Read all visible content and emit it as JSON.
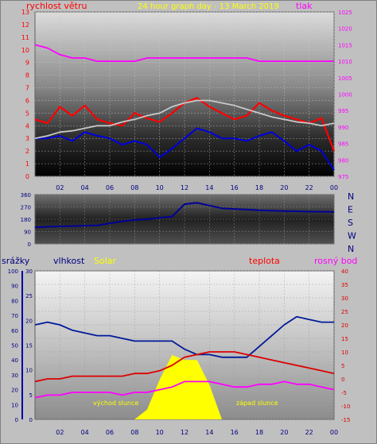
{
  "colors": {
    "background": "#c0c0c0",
    "wind": "#ff0000",
    "wind_avg": "#0000dd",
    "pressure": "#ff00ff",
    "direction": "#000099",
    "humidity": "#001a99",
    "solar": "#ffff00",
    "temperature": "#dd0000",
    "dewpoint": "#ff00ff",
    "temp_grey": "#c8c8c8"
  },
  "chart_data": [
    {
      "type": "line",
      "title": "24 hour graph day - 13 March 2019",
      "left_label": "rychlost větru",
      "right_label": "tlak",
      "x_ticks": [
        "02",
        "04",
        "06",
        "08",
        "10",
        "12",
        "14",
        "16",
        "18",
        "20",
        "22",
        "00"
      ],
      "y_left": {
        "min": 0,
        "max": 13,
        "ticks": [
          "0",
          "1",
          "2",
          "3",
          "4",
          "5",
          "6",
          "7",
          "8",
          "9",
          "10",
          "11",
          "12",
          "13"
        ]
      },
      "y_right": {
        "min": 975,
        "max": 1025,
        "ticks": [
          "975",
          "980",
          "985",
          "990",
          "995",
          "1000",
          "1005",
          "1010",
          "1015",
          "1020",
          "1025"
        ]
      },
      "x": [
        0,
        1,
        2,
        3,
        4,
        5,
        6,
        7,
        8,
        9,
        10,
        11,
        12,
        13,
        14,
        15,
        16,
        17,
        18,
        19,
        20,
        21,
        22,
        23,
        24
      ],
      "series": [
        {
          "name": "gust",
          "axis": "left",
          "values": [
            4.5,
            4.2,
            5.5,
            4.8,
            5.6,
            4.5,
            4.2,
            4.0,
            5.0,
            4.6,
            4.3,
            5.0,
            5.8,
            6.2,
            5.5,
            5.0,
            4.5,
            4.8,
            5.8,
            5.2,
            4.8,
            4.5,
            4.2,
            4.6,
            2.0
          ]
        },
        {
          "name": "average",
          "axis": "left",
          "values": [
            3.0,
            3.0,
            3.2,
            2.8,
            3.5,
            3.2,
            3.0,
            2.5,
            2.8,
            2.5,
            1.5,
            2.2,
            3.0,
            3.8,
            3.5,
            3.0,
            3.0,
            2.8,
            3.2,
            3.5,
            2.8,
            2.0,
            2.5,
            2.0,
            0.5
          ]
        },
        {
          "name": "pressure",
          "axis": "right",
          "values": [
            1015,
            1014,
            1012,
            1011,
            1011,
            1010,
            1010,
            1010,
            1010,
            1011,
            1011,
            1011,
            1011,
            1011,
            1011,
            1011,
            1011,
            1011,
            1010,
            1010,
            1010,
            1010,
            1010,
            1010,
            1010
          ]
        },
        {
          "name": "temperature",
          "axis": "left",
          "values": [
            3.0,
            3.2,
            3.5,
            3.6,
            3.8,
            4.0,
            4.0,
            4.3,
            4.5,
            4.8,
            5.0,
            5.5,
            5.8,
            6.0,
            6.0,
            5.8,
            5.6,
            5.3,
            5.0,
            4.7,
            4.5,
            4.3,
            4.2,
            4.0,
            4.2
          ]
        }
      ]
    },
    {
      "type": "line",
      "left_ticks": [
        "0",
        "90",
        "180",
        "270",
        "360"
      ],
      "right_labels": [
        "N",
        "W",
        "S",
        "E",
        "N"
      ],
      "ylim": [
        0,
        360
      ],
      "x": [
        0,
        1,
        2,
        3,
        4,
        5,
        6,
        7,
        8,
        9,
        10,
        11,
        12,
        13,
        14,
        15,
        16,
        17,
        18,
        19,
        20,
        21,
        22,
        23,
        24
      ],
      "series": [
        {
          "name": "direction",
          "values": [
            120,
            125,
            128,
            130,
            133,
            135,
            150,
            165,
            175,
            180,
            190,
            200,
            290,
            300,
            280,
            260,
            255,
            250,
            245,
            242,
            240,
            238,
            236,
            235,
            234
          ]
        }
      ]
    },
    {
      "type": "line",
      "labels": {
        "precip": "srážky",
        "humidity": "vlhkost",
        "solar": "Solar",
        "temperature": "teplota",
        "dewpoint": "rosný bod"
      },
      "annotations": {
        "sunrise": "východ slunce",
        "sunset": "západ slunce"
      },
      "y_precip_ticks": [
        "0",
        "10",
        "20",
        "30",
        "40",
        "50",
        "60",
        "70",
        "80",
        "90",
        "100"
      ],
      "y_humidity_ticks": [
        "0",
        "5",
        "10",
        "15",
        "20",
        "25",
        "30"
      ],
      "y_temp_ticks": [
        "40",
        "35",
        "30",
        "25",
        "20",
        "15",
        "10",
        "5",
        "0",
        "-5",
        "-10",
        "-15"
      ],
      "x_ticks": [
        "02",
        "04",
        "06",
        "08",
        "10",
        "12",
        "14",
        "16",
        "18",
        "20",
        "22",
        "00"
      ],
      "x": [
        0,
        1,
        2,
        3,
        4,
        5,
        6,
        7,
        8,
        9,
        10,
        11,
        12,
        13,
        14,
        15,
        16,
        17,
        18,
        19,
        20,
        21,
        22,
        23,
        24
      ],
      "series": [
        {
          "name": "humidity",
          "axis": "temp",
          "values": [
            20,
            21,
            20,
            18,
            17,
            16,
            16,
            15,
            14,
            14,
            14,
            14,
            11,
            9,
            9,
            8,
            8,
            8,
            12,
            16,
            20,
            23,
            22,
            21,
            21
          ]
        },
        {
          "name": "temperature",
          "axis": "temp",
          "values": [
            -1,
            0,
            0,
            1,
            1,
            1,
            1,
            1,
            2,
            2,
            3,
            5,
            8,
            9,
            10,
            10,
            10,
            9,
            8,
            7,
            6,
            5,
            4,
            3,
            2
          ]
        },
        {
          "name": "dewpoint",
          "axis": "temp",
          "values": [
            -7,
            -6,
            -6,
            -5,
            -5,
            -5,
            -5,
            -6,
            -5,
            -5,
            -4,
            -3,
            -1,
            -1,
            -1,
            -2,
            -3,
            -3,
            -2,
            -2,
            -1,
            -2,
            -2,
            -3,
            -4
          ]
        },
        {
          "name": "solar",
          "axis": "humidity",
          "values": [
            0,
            0,
            0,
            0,
            0,
            0,
            0,
            0,
            0,
            2,
            8,
            13,
            12,
            12,
            7,
            0,
            0,
            0,
            0,
            0,
            0,
            0,
            0,
            0,
            0
          ]
        }
      ]
    }
  ]
}
